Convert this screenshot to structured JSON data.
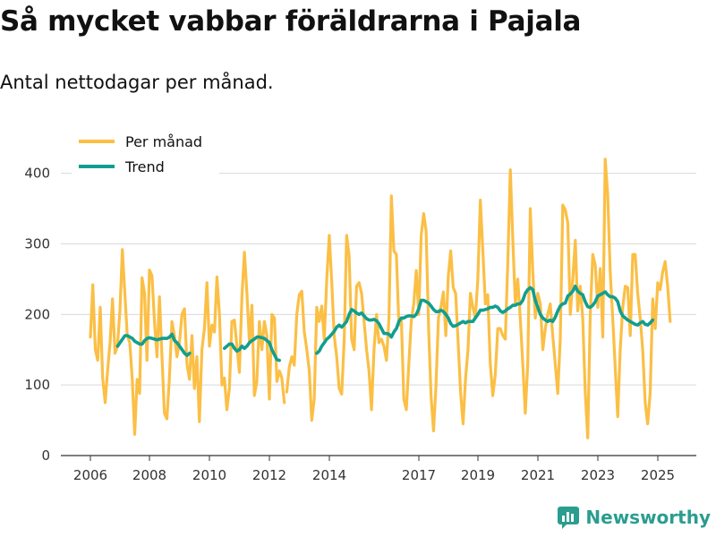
{
  "header": {
    "title": "Så mycket vabbar föräldrarna i Pajala",
    "subtitle": "Antal nettodagar per månad."
  },
  "brand": {
    "name": "Newsworthy"
  },
  "colors": {
    "monthly": "#fbbf45",
    "trend": "#129e8e",
    "grid": "#d9d9d9",
    "axis": "#333333",
    "brand": "#2a9d8f"
  },
  "chart_data": {
    "type": "line",
    "title": "Så mycket vabbar föräldrarna i Pajala",
    "subtitle": "Antal nettodagar per månad.",
    "xlabel": "",
    "ylabel": "",
    "xlim": [
      2005.9,
      2025.9
    ],
    "ylim": [
      0,
      430
    ],
    "y_ticks": [
      0,
      100,
      200,
      300,
      400
    ],
    "x_ticks": [
      2006,
      2008,
      2010,
      2012,
      2014,
      2017,
      2019,
      2021,
      2023,
      2025
    ],
    "grid": "horizontal",
    "legend": {
      "placement": "top-left",
      "entries": [
        "Per månad",
        "Trend"
      ]
    },
    "series": [
      {
        "name": "Per månad",
        "color": "#fbbf45",
        "segments": [
          {
            "start": 2006.0,
            "step": 0.08333,
            "values": [
              168,
              242,
              150,
              135,
              210,
              110,
              75,
              120,
              160,
              222,
              145,
              155,
              205,
              292,
              230,
              170,
              160,
              110,
              30,
              108,
              88,
              252,
              230,
              135,
              263,
              255,
              190,
              140,
              225,
              140,
              60,
              52,
              110,
              190,
              170,
              140,
              160,
              200,
              208,
              130,
              108,
              170,
              95,
              140,
              48,
              150,
              180,
              245,
              155,
              185,
              175,
              253,
              200,
              100,
              110,
              65,
              95,
              190,
              192,
              155,
              118,
              225,
              288,
              230,
              160,
              213,
              85,
              105,
              190,
              150,
              190,
              170,
              80,
              200,
              195,
              105,
              120,
              110,
              75
            ]
          },
          {
            "start": 2012.58,
            "step": 0.08333,
            "values": [
              90,
              125,
              140,
              128,
              200,
              228,
              233,
              175,
              150,
              120,
              50,
              80,
              210,
              190,
              212,
              165,
              250,
              312,
              245,
              170,
              140,
              95,
              87,
              165,
              312,
              283,
              165,
              150,
              240,
              245,
              230,
              190,
              150,
              120,
              65,
              150,
              200,
              160,
              165,
              155,
              135,
              195,
              368,
              290,
              285,
              185,
              195,
              80,
              65,
              130,
              190,
              215,
              262,
              200,
              312,
              343,
              318,
              180,
              85,
              35,
              98,
              195,
              210,
              232,
              170,
              255,
              290,
              238,
              230,
              160,
              90,
              45,
              108,
              150,
              230,
              210,
              195,
              250,
              362,
              290,
              215,
              228,
              130,
              85,
              115,
              180,
              180,
              170,
              165,
              275,
              405,
              305,
              215,
              250,
              195,
              130,
              60,
              130,
              350,
              260,
              195,
              230,
              215,
              150,
              180,
              200,
              215,
              170,
              130,
              88,
              165,
              355,
              348,
              330,
              200,
              250,
              305,
              205,
              240,
              195,
              90,
              25,
              200,
              285,
              270,
              210,
              265,
              168,
              420,
              370,
              260,
              195,
              125,
              55,
              150,
              210,
              240,
              238,
              170,
              285,
              285,
              230,
              195,
              150,
              75,
              45,
              90,
              222,
              180,
              245,
              235,
              260,
              275,
              240,
              190
            ]
          }
        ]
      },
      {
        "name": "Trend",
        "color": "#129e8e",
        "segments": [
          {
            "start": 2006.92,
            "step": 0.08333,
            "values": [
              155,
              160,
              165,
              170,
              170,
              168,
              166,
              162,
              160,
              158,
              158,
              163,
              166,
              167,
              166,
              165,
              164,
              165,
              166,
              166,
              166,
              168,
              172,
              163,
              160,
              155,
              150,
              145,
              142,
              145
            ]
          },
          {
            "start": 2010.5,
            "step": 0.08333,
            "values": [
              152,
              155,
              158,
              158,
              152,
              148,
              150,
              155,
              152,
              155,
              160,
              163,
              165,
              168,
              168,
              167,
              166,
              163,
              160,
              150,
              143,
              136,
              135
            ]
          },
          {
            "start": 2013.58,
            "step": 0.08333,
            "values": [
              145,
              148,
              155,
              160,
              165,
              168,
              172,
              176,
              182,
              185,
              182,
              186,
              190,
              200,
              207,
              205,
              202,
              200,
              202,
              198,
              194,
              192,
              192,
              193,
              191,
              187,
              180,
              173,
              173,
              172,
              168,
              175,
              180,
              190,
              195,
              195,
              197,
              198,
              198,
              197,
              200,
              208,
              220,
              220,
              218,
              216,
              212,
              207,
              204,
              204,
              206,
              204,
              200,
              195,
              187,
              183,
              184,
              186,
              188,
              190,
              188,
              190,
              190,
              190,
              195,
              200,
              206,
              206,
              207,
              208,
              210,
              210,
              212,
              210,
              205,
              203,
              205,
              208,
              210,
              213,
              213,
              215,
              215,
              220,
              230,
              235,
              238,
              235,
              220,
              210,
              200,
              195,
              192,
              190,
              192,
              190,
              196,
              205,
              212,
              215,
              216,
              226,
              229,
              233,
              240,
              233,
              230,
              228,
              218,
              211,
              210,
              213,
              218,
              226,
              228,
              230,
              232,
              228,
              225,
              225,
              223,
              218,
              205,
              198,
              195,
              192,
              190,
              188,
              186,
              185,
              188,
              190,
              186,
              185,
              188,
              192
            ]
          }
        ]
      }
    ]
  }
}
